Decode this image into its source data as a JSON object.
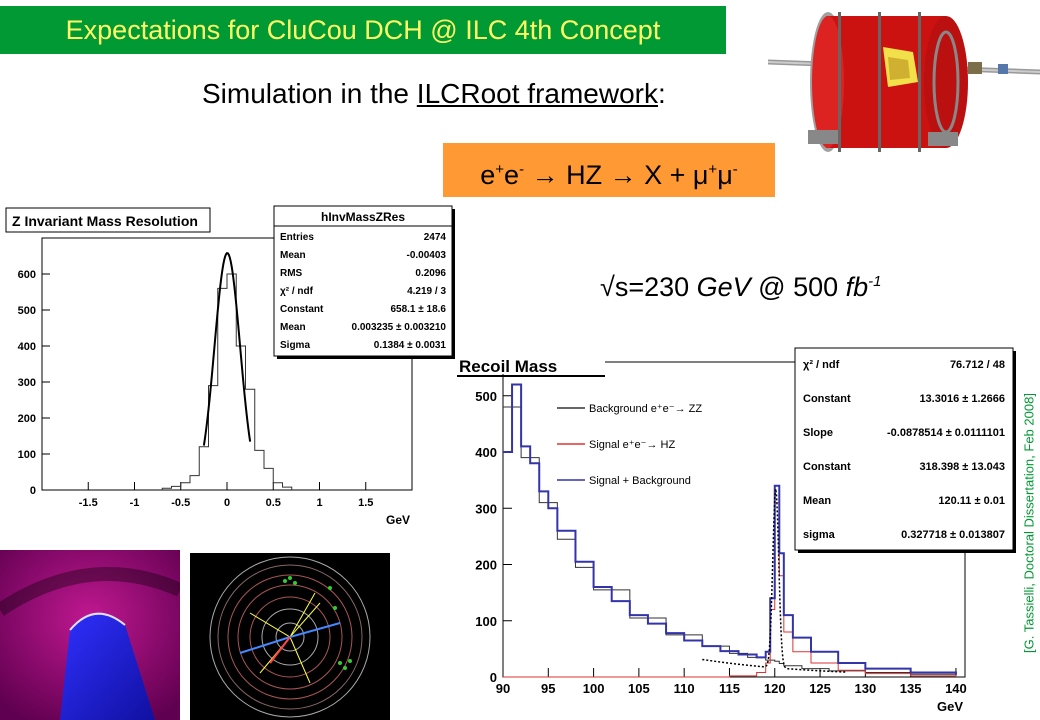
{
  "slide": {
    "title": "Expectations  for CluCou DCH @ ILC 4th Concept",
    "subtitle_prefix": "Simulation in the ",
    "subtitle_link": "ILCRoot framework",
    "subtitle_suffix": ":",
    "reaction": {
      "p1": "e",
      "p2": "+",
      "p3": "e",
      "p4": "-",
      "p5": " → HZ → X + μ",
      "p6": "+",
      "p7": "μ",
      "p8": "-"
    },
    "energy": {
      "main": "√s=230 ",
      "unit": "GeV",
      "at": "  @  500 ",
      "lumi": "fb",
      "lumi_exp": "-1"
    },
    "citation": "[G. Tassielli, Doctoral Dissertation, Feb 2008]"
  },
  "chart_data": [
    {
      "type": "histogram",
      "title": "Z Invariant Mass Resolution",
      "xlabel": "GeV",
      "xlim": [
        -2.0,
        2.0
      ],
      "ylim": [
        0,
        700
      ],
      "x_ticks": [
        "-1.5",
        "-1",
        "-0.5",
        "0",
        "0.5",
        "1",
        "1.5"
      ],
      "y_ticks": [
        "0",
        "100",
        "200",
        "300",
        "400",
        "500",
        "600"
      ],
      "bin_edges": [
        -0.7,
        -0.6,
        -0.5,
        -0.4,
        -0.3,
        -0.2,
        -0.1,
        0.0,
        0.1,
        0.2,
        0.3,
        0.4,
        0.5,
        0.6,
        0.7
      ],
      "bin_counts": [
        5,
        10,
        20,
        40,
        120,
        290,
        560,
        600,
        400,
        280,
        110,
        60,
        20,
        8
      ],
      "fit": {
        "type": "gauss",
        "constant": 658.1,
        "mean": 0.003235,
        "sigma": 0.1384,
        "range": [
          -0.25,
          0.25
        ]
      },
      "stats": {
        "name": "hInvMassZRes",
        "rows": [
          {
            "label": "Entries",
            "value": "2474"
          },
          {
            "label": "Mean",
            "value": "-0.00403"
          },
          {
            "label": "RMS",
            "value": "0.2096"
          },
          {
            "label": "χ² / ndf",
            "value": "4.219 / 3"
          },
          {
            "label": "Constant",
            "value": "658.1 ± 18.6"
          },
          {
            "label": "Mean",
            "value": "0.003235 ± 0.003210"
          },
          {
            "label": "Sigma",
            "value": "0.1384 ± 0.0031"
          }
        ]
      }
    },
    {
      "type": "histogram",
      "title": "Recoil Mass",
      "xlabel": "GeV",
      "xlim": [
        90,
        141
      ],
      "ylim": [
        0,
        560
      ],
      "x_ticks": [
        "90",
        "95",
        "100",
        "105",
        "110",
        "115",
        "120",
        "125",
        "130",
        "135",
        "140"
      ],
      "y_ticks": [
        "0",
        "100",
        "200",
        "300",
        "400",
        "500"
      ],
      "legend": [
        "Background e⁺e⁻→ ZZ",
        "Signal e⁺e⁻→ HZ",
        "Signal + Background"
      ],
      "series": [
        {
          "name": "Background e⁺e⁻→ ZZ",
          "color": "#333333",
          "x": [
            90,
            92,
            94,
            96,
            98,
            100,
            104,
            108,
            112,
            115,
            117,
            119,
            119.5,
            120,
            120.5,
            121,
            123,
            126,
            130,
            135,
            140
          ],
          "y": [
            480,
            390,
            310,
            245,
            195,
            155,
            105,
            75,
            55,
            42,
            35,
            30,
            30,
            28,
            24,
            20,
            15,
            11,
            8,
            5,
            3
          ]
        },
        {
          "name": "Signal e⁺e⁻→ HZ",
          "color": "#dd3333",
          "x": [
            90,
            100,
            110,
            115,
            118,
            119,
            119.5,
            120,
            120.5,
            121,
            122,
            124,
            127,
            130,
            135,
            140
          ],
          "y": [
            0,
            0,
            0,
            2,
            8,
            25,
            120,
            310,
            180,
            80,
            45,
            25,
            12,
            6,
            2,
            0
          ]
        },
        {
          "name": "Signal + Background",
          "color": "#3333aa",
          "x": [
            90,
            91,
            92,
            93,
            94,
            95,
            96,
            98,
            100,
            102,
            104,
            106,
            108,
            110,
            112,
            114,
            116,
            118,
            119,
            119.5,
            120,
            120.5,
            121,
            122,
            124,
            127,
            130,
            135,
            140
          ],
          "y": [
            400,
            520,
            410,
            380,
            330,
            300,
            260,
            205,
            160,
            135,
            110,
            95,
            78,
            65,
            55,
            46,
            40,
            35,
            45,
            140,
            340,
            220,
            110,
            70,
            45,
            25,
            15,
            8,
            4
          ]
        }
      ],
      "fit_stats": [
        {
          "label": "χ² / ndf",
          "value": "76.712 / 48"
        },
        {
          "label": "Constant",
          "value": "13.3016 ± 1.2666"
        },
        {
          "label": "Slope",
          "value": "-0.0878514 ± 0.0111101"
        },
        {
          "label": "Constant",
          "value": "318.398 ± 13.043"
        },
        {
          "label": "Mean",
          "value": "120.11 ± 0.01"
        },
        {
          "label": "sigma",
          "value": "0.327718 ± 0.013807"
        }
      ]
    }
  ]
}
